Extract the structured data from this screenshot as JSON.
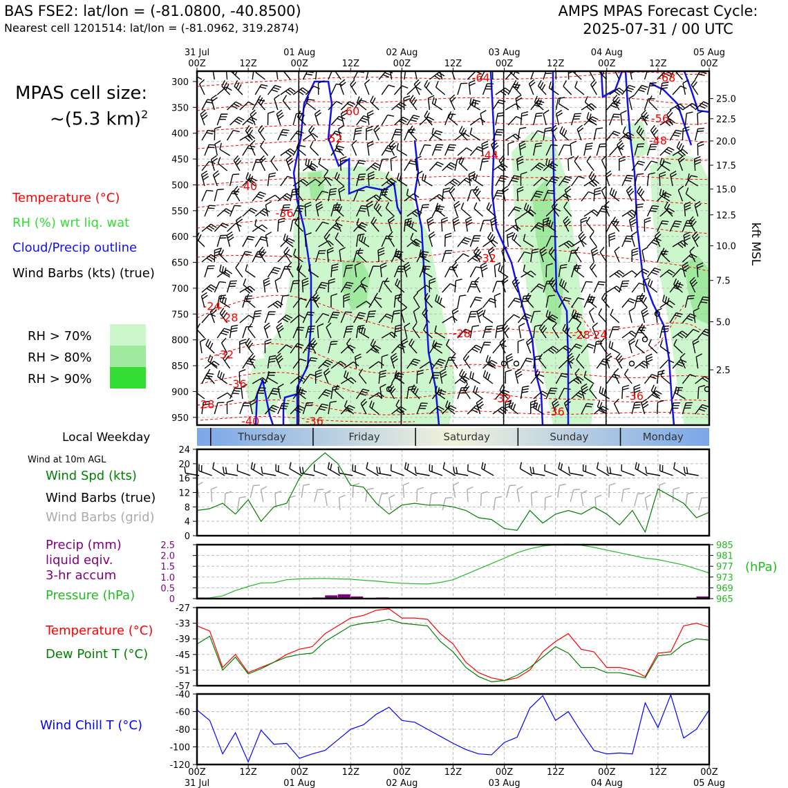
{
  "header": {
    "station": "BAS FSE2: lat/lon = (-81.0800, -40.8500)",
    "nearest": "Nearest cell 1201514: lat/lon = (-81.0962, 319.2874)",
    "cycle_line1": "AMPS MPAS Forecast Cycle:",
    "cycle_line2": "2025-07-31 / 00 UTC"
  },
  "cell_size": {
    "line1": "MPAS cell size:",
    "line2_prefix": "~(5.3 km)",
    "line2_sup": "2"
  },
  "colors": {
    "temperature": "#ff0000",
    "rh": "#33dd33",
    "cloud": "#1111ee",
    "dewpoint": "#008000",
    "pressure": "#22bb22",
    "precip": "#800080",
    "windchill": "#0000ff",
    "grid_barbs": "#aaaaaa",
    "rh70": "#ccf7cc",
    "rh80": "#a0eaa0",
    "rh90": "#33dd33"
  },
  "legend": {
    "temperature": "Temperature (°C)",
    "rh": "RH (%) wrt liq. wat",
    "cloud": "Cloud/Precip outline",
    "wind": "Wind Barbs (kts) (true)",
    "rh70": "RH > 70%",
    "rh80": "RH > 80%",
    "rh90": "RH > 90%"
  },
  "weekday": {
    "label": "Local Weekday",
    "days": [
      "Thursday",
      "Friday",
      "Saturday",
      "Sunday",
      "Monday"
    ]
  },
  "top_time_axis": {
    "labels": [
      {
        "t": 0,
        "l1": "31 Jul",
        "l2": "00Z"
      },
      {
        "t": 12,
        "l1": "",
        "l2": "12Z"
      },
      {
        "t": 24,
        "l1": "01 Aug",
        "l2": "00Z"
      },
      {
        "t": 36,
        "l1": "",
        "l2": "12Z"
      },
      {
        "t": 48,
        "l1": "02 Aug",
        "l2": "00Z"
      },
      {
        "t": 60,
        "l1": "",
        "l2": "12Z"
      },
      {
        "t": 72,
        "l1": "03 Aug",
        "l2": "00Z"
      },
      {
        "t": 84,
        "l1": "",
        "l2": "12Z"
      },
      {
        "t": 96,
        "l1": "04 Aug",
        "l2": "00Z"
      },
      {
        "t": 108,
        "l1": "",
        "l2": "12Z"
      },
      {
        "t": 120,
        "l1": "05 Aug",
        "l2": "00Z"
      }
    ]
  },
  "bottom_time_axis": {
    "labels": [
      {
        "t": 0,
        "l1": "00Z",
        "l2": "31 Jul"
      },
      {
        "t": 12,
        "l1": "12Z",
        "l2": ""
      },
      {
        "t": 24,
        "l1": "00Z",
        "l2": "01 Aug"
      },
      {
        "t": 36,
        "l1": "12Z",
        "l2": ""
      },
      {
        "t": 48,
        "l1": "00Z",
        "l2": "02 Aug"
      },
      {
        "t": 60,
        "l1": "12Z",
        "l2": ""
      },
      {
        "t": 72,
        "l1": "00Z",
        "l2": "03 Aug"
      },
      {
        "t": 84,
        "l1": "12Z",
        "l2": ""
      },
      {
        "t": 96,
        "l1": "00Z",
        "l2": "04 Aug"
      },
      {
        "t": 108,
        "l1": "12Z",
        "l2": ""
      },
      {
        "t": 120,
        "l1": "00Z",
        "l2": "05 Aug"
      }
    ]
  },
  "chart_data": [
    {
      "type": "heatmap",
      "name": "time-height cross section",
      "y_axis_pressure_ticks": [
        "300",
        "350",
        "400",
        "450",
        "500",
        "550",
        "600",
        "650",
        "700",
        "750",
        "800",
        "850",
        "900",
        "950"
      ],
      "y_axis_kft_ticks": [
        "25.0",
        "22.5",
        "20.0",
        "17.5",
        "15.0",
        "12.5",
        "10.0",
        "7.5",
        "5.0",
        "2.5"
      ],
      "y_axis_kft_values": [
        25.0,
        22.5,
        20.0,
        17.5,
        15.0,
        12.5,
        10.0,
        7.5,
        5.0,
        2.5
      ],
      "y_axis_kft_pressure": [
        333,
        372,
        415,
        462,
        508,
        558,
        618,
        685,
        765,
        858
      ],
      "ylabel_right": "kft MSL",
      "ylim_hpa": [
        280,
        965
      ],
      "xlim_hours": [
        0,
        120
      ],
      "temperature_labels": [
        {
          "t": 66.5,
          "p": 292,
          "v": "-64"
        },
        {
          "t": 110,
          "p": 292,
          "v": "-68"
        },
        {
          "t": 36,
          "p": 357,
          "v": "-60"
        },
        {
          "t": 108.5,
          "p": 371,
          "v": "-56"
        },
        {
          "t": 32,
          "p": 410,
          "v": "-52"
        },
        {
          "t": 108,
          "p": 414,
          "v": "-48"
        },
        {
          "t": 68.5,
          "p": 442,
          "v": "-44"
        },
        {
          "t": 12,
          "p": 502,
          "v": "-40"
        },
        {
          "t": 20.5,
          "p": 554,
          "v": "-36"
        },
        {
          "t": 68,
          "p": 641,
          "v": "-32"
        },
        {
          "t": 3.5,
          "p": 734,
          "v": "-24"
        },
        {
          "t": 7.5,
          "p": 756,
          "v": "-28"
        },
        {
          "t": 62,
          "p": 787,
          "v": "-28"
        },
        {
          "t": 90,
          "p": 790,
          "v": "-28"
        },
        {
          "t": 94,
          "p": 790,
          "v": "-24"
        },
        {
          "t": 6.5,
          "p": 828,
          "v": "-32"
        },
        {
          "t": 9.5,
          "p": 885,
          "v": "-36"
        },
        {
          "t": 71.5,
          "p": 913,
          "v": "-32"
        },
        {
          "t": 102.5,
          "p": 908,
          "v": "-36"
        },
        {
          "t": 2,
          "p": 924,
          "v": "-28"
        },
        {
          "t": 12.5,
          "p": 957,
          "v": "-40"
        },
        {
          "t": 27.5,
          "p": 957,
          "v": "-36"
        },
        {
          "t": 84,
          "p": 938,
          "v": "-36"
        }
      ],
      "rh_regions_hours": [
        [
          24,
          62
        ],
        [
          74,
          88
        ],
        [
          107,
          120
        ]
      ],
      "cloud_outline_hours": [
        26,
        28,
        54,
        57,
        70,
        84,
        86,
        103,
        112
      ]
    },
    {
      "type": "line",
      "name": "Wind Spd (kts)",
      "title": "Wind at 10m AGL",
      "ylabel": "Wind Spd (kts)",
      "ylim": [
        0,
        24
      ],
      "yticks": [
        "0",
        "4",
        "8",
        "12",
        "16",
        "20",
        "24"
      ],
      "x_hours": [
        0,
        3,
        6,
        9,
        12,
        15,
        18,
        21,
        24,
        27,
        30,
        33,
        36,
        39,
        42,
        45,
        48,
        51,
        54,
        57,
        60,
        63,
        66,
        69,
        72,
        75,
        78,
        81,
        84,
        87,
        90,
        93,
        96,
        99,
        102,
        105,
        108,
        111,
        114,
        117,
        120
      ],
      "values": [
        7,
        7.5,
        9,
        6,
        10,
        4,
        8,
        9,
        16,
        20,
        23,
        20,
        14,
        13.5,
        9,
        6,
        8.5,
        9,
        8.5,
        8.5,
        8,
        7,
        5,
        4.5,
        2,
        1.5,
        7,
        3.5,
        6,
        7,
        6,
        8,
        6,
        3,
        7,
        1,
        13,
        11,
        9,
        5,
        6.5
      ],
      "barb_labels": [
        "Wind Barbs (true)",
        "Wind Barbs (grid)"
      ]
    },
    {
      "type": "line",
      "name": "Pressure / Precip",
      "series": [
        {
          "name": "Pressure (hPa)",
          "axis": "right",
          "values": [
            965,
            965.3,
            966,
            968,
            969.5,
            970.8,
            970.9,
            972,
            972.3,
            972.4,
            972.5,
            972.3,
            972.2,
            971.8,
            971.5,
            971,
            970.7,
            970.5,
            970.4,
            971,
            972,
            974,
            976,
            978,
            980,
            982,
            983.5,
            984.5,
            985,
            985.2,
            984.8,
            984,
            983,
            982,
            981,
            980,
            979.5,
            978.5,
            977.5,
            976,
            974.5
          ]
        },
        {
          "name": "Precip (mm) liquid eqiv. 3-hr accum",
          "axis": "left",
          "type": "bar",
          "values": [
            0.05,
            0,
            0,
            0,
            0,
            0,
            0,
            0,
            0,
            0.05,
            0.15,
            0.2,
            0.1,
            0,
            0.05,
            0.02,
            0,
            0,
            0,
            0,
            0,
            0,
            0,
            0,
            0,
            0,
            0,
            0,
            0,
            0,
            0,
            0,
            0,
            0,
            0,
            0,
            0,
            0,
            0,
            0.1,
            0
          ]
        }
      ],
      "x_hours": [
        0,
        3,
        6,
        9,
        12,
        15,
        18,
        21,
        24,
        27,
        30,
        33,
        36,
        39,
        42,
        45,
        48,
        51,
        54,
        57,
        60,
        63,
        66,
        69,
        72,
        75,
        78,
        81,
        84,
        87,
        90,
        93,
        96,
        99,
        102,
        105,
        108,
        111,
        114,
        117,
        120
      ],
      "ylim_left": [
        0,
        2.5
      ],
      "yticks_left": [
        "0",
        "0.5",
        "1.0",
        "1.5",
        "2.0",
        "2.5"
      ],
      "ylim_right": [
        965,
        985
      ],
      "yticks_right": [
        "965",
        "969",
        "973",
        "977",
        "981",
        "985"
      ],
      "ylabel_right": "(hPa)",
      "ylabel_left": "Precip (mm)",
      "ylabel_left_2": "liquid eqiv.",
      "ylabel_left_3": "3-hr accum",
      "ylabel_pressure": "Pressure (hPa)"
    },
    {
      "type": "line",
      "name": "Temperature / Dew Point",
      "ylim": [
        -57,
        -27
      ],
      "yticks": [
        "-27",
        "-33",
        "-39",
        "-45",
        "-51",
        "-57"
      ],
      "x_hours": [
        0,
        3,
        6,
        9,
        12,
        15,
        18,
        21,
        24,
        27,
        30,
        33,
        36,
        39,
        42,
        45,
        48,
        51,
        54,
        57,
        60,
        63,
        66,
        69,
        72,
        75,
        78,
        81,
        84,
        87,
        90,
        93,
        96,
        99,
        102,
        105,
        108,
        111,
        114,
        117,
        120
      ],
      "series": [
        {
          "name": "Temperature (°C)",
          "values": [
            -34,
            -36,
            -50,
            -45,
            -52,
            -50,
            -48,
            -45,
            -43,
            -42,
            -37,
            -34,
            -31,
            -30,
            -28,
            -27.5,
            -31,
            -31,
            -31.5,
            -37,
            -41,
            -48,
            -52,
            -54,
            -55,
            -54,
            -51,
            -44,
            -40,
            -37,
            -43,
            -44,
            -50,
            -50,
            -51,
            -53.5,
            -44.5,
            -44,
            -34,
            -33,
            -34.5
          ]
        },
        {
          "name": "Dew Point T (°C)",
          "values": [
            -41,
            -38,
            -51,
            -46,
            -52.5,
            -50.5,
            -48,
            -46,
            -45,
            -44.5,
            -40,
            -37,
            -34,
            -33,
            -32.5,
            -31.5,
            -33,
            -33.5,
            -34,
            -40,
            -44,
            -50,
            -53.5,
            -55.5,
            -55,
            -53,
            -50,
            -46,
            -42,
            -44.5,
            -50,
            -50,
            -52,
            -52,
            -53,
            -54,
            -45.5,
            -45,
            -41,
            -39,
            -39.5
          ]
        }
      ]
    },
    {
      "type": "line",
      "name": "Wind Chill T (°C)",
      "ylim": [
        -120,
        -40
      ],
      "yticks": [
        "-40",
        "-60",
        "-80",
        "-100",
        "-120"
      ],
      "x_hours": [
        0,
        3,
        6,
        9,
        12,
        15,
        18,
        21,
        24,
        27,
        30,
        33,
        36,
        39,
        42,
        45,
        48,
        51,
        54,
        57,
        60,
        63,
        66,
        69,
        72,
        75,
        78,
        81,
        84,
        87,
        90,
        93,
        96,
        99,
        102,
        105,
        108,
        111,
        114,
        117,
        120
      ],
      "series": [
        {
          "name": "Wind Chill T (°C)",
          "values": [
            -58,
            -70,
            -108,
            -84,
            -117,
            -81,
            -97,
            -96,
            -113,
            -108,
            -104,
            -92,
            -80,
            -75,
            -63,
            -55,
            -70,
            -72,
            -80,
            -88,
            -96,
            -103,
            -108,
            -109,
            -95,
            -89,
            -56,
            -42,
            -70,
            -60,
            -83,
            -104,
            -108,
            -107,
            -108,
            -50,
            -78,
            -41,
            -90,
            -80,
            -58
          ]
        }
      ]
    }
  ]
}
